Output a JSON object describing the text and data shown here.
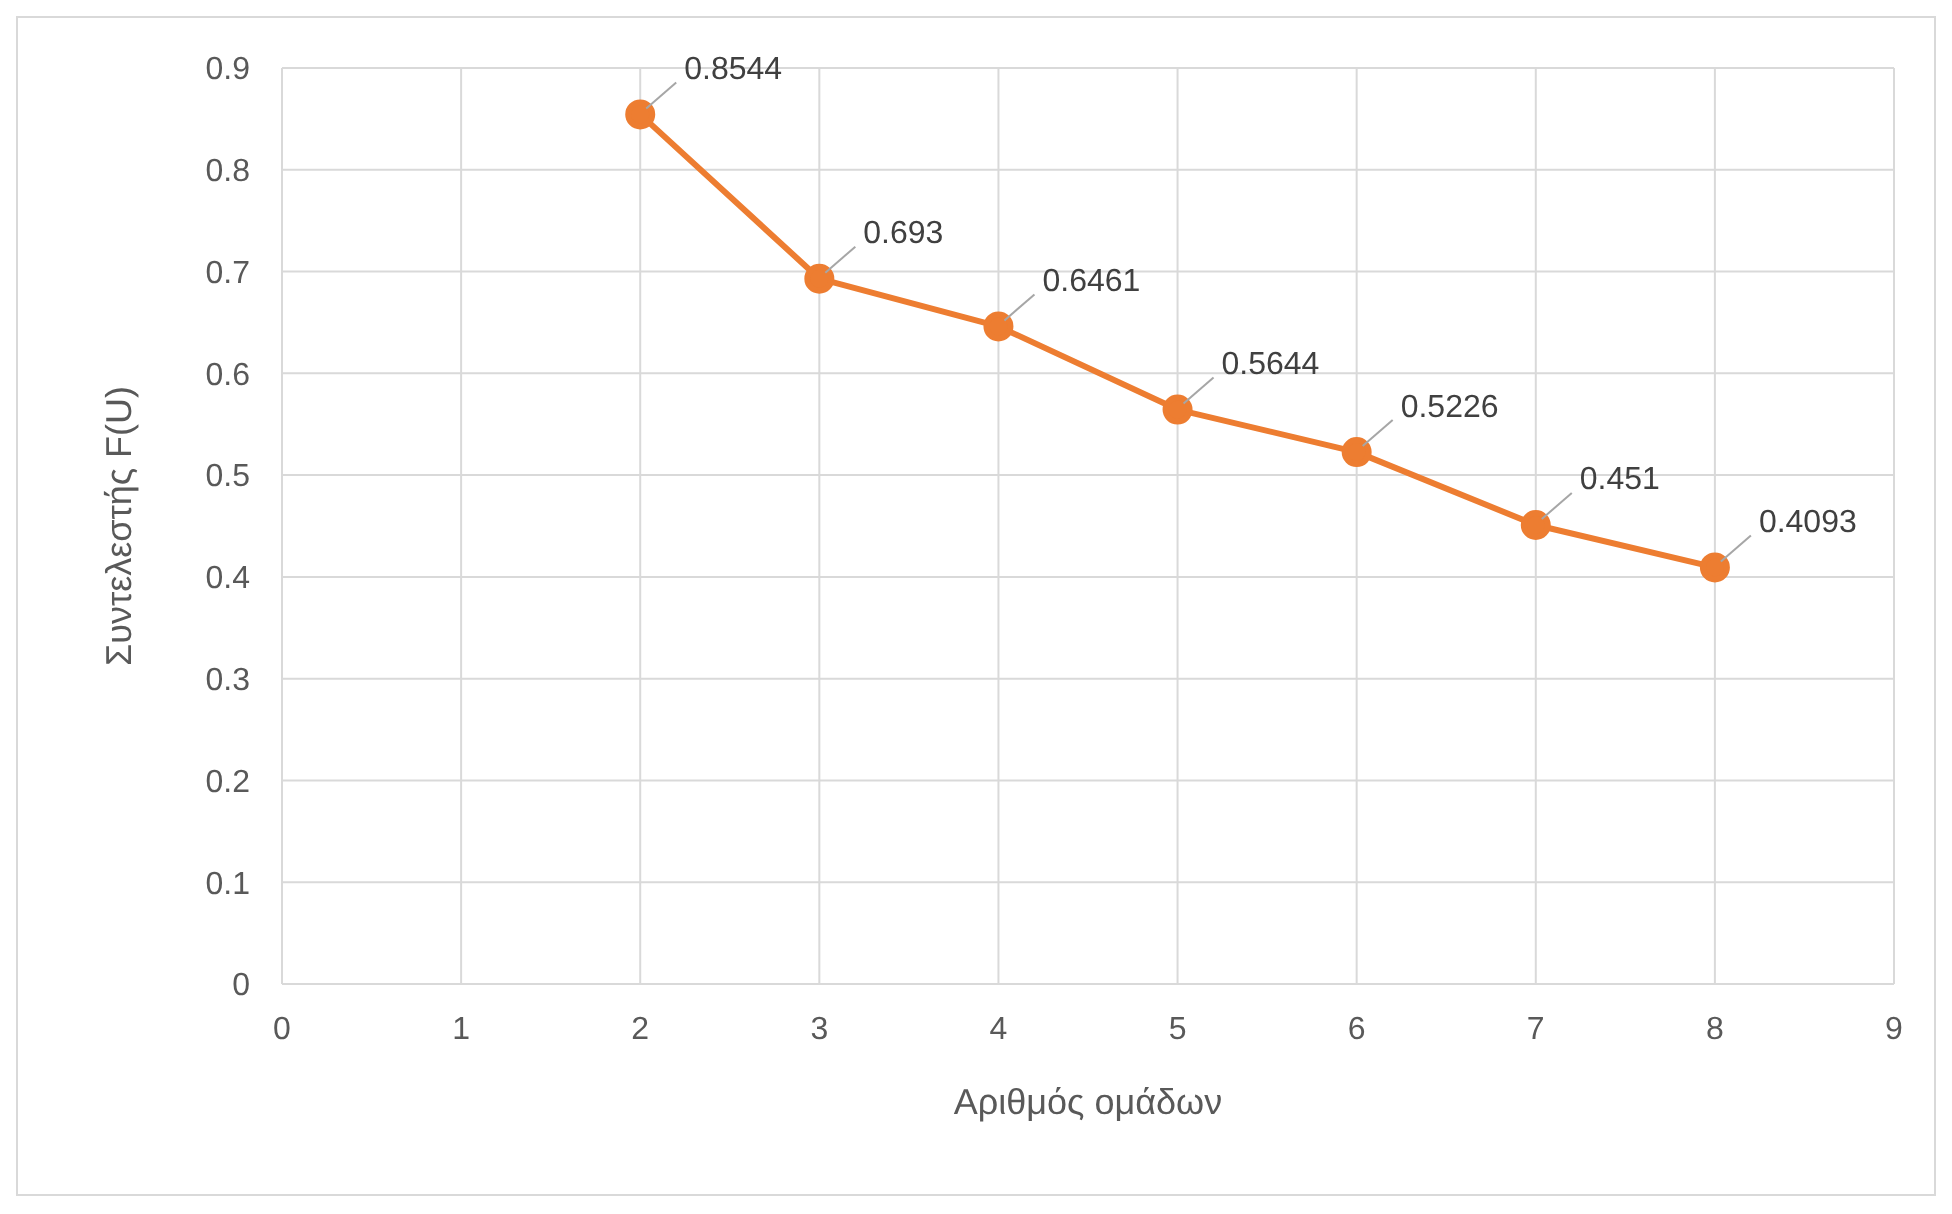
{
  "chart_data": {
    "type": "line",
    "xlabel": "Αριθμός ομάδων",
    "ylabel": "Συντελεστής F(U)",
    "x": [
      2,
      3,
      4,
      5,
      6,
      7,
      8
    ],
    "series": [
      {
        "color": "#ed7d31",
        "values": [
          0.8544,
          0.693,
          0.6461,
          0.5644,
          0.5226,
          0.451,
          0.4093
        ]
      }
    ],
    "xlim": [
      0,
      9
    ],
    "xticks": [
      0,
      1,
      2,
      3,
      4,
      5,
      6,
      7,
      8,
      9
    ],
    "ylim": [
      0,
      0.9
    ],
    "yticks": [
      0,
      0.1,
      0.2,
      0.3,
      0.4,
      0.5,
      0.6,
      0.7,
      0.8,
      0.9
    ],
    "grid": true,
    "legend": false,
    "marker": "circle",
    "line_style": "solid",
    "data_labels": true
  }
}
